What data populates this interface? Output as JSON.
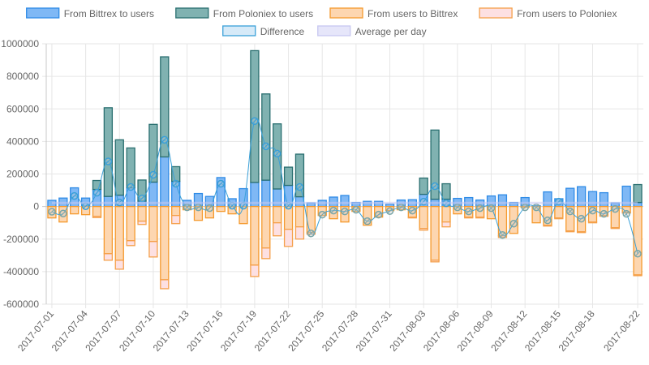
{
  "chart_data": {
    "type": "bar",
    "title": "",
    "xlabel": "",
    "ylabel": "",
    "ylim": [
      -600000,
      1000000
    ],
    "yticks": [
      1000000,
      800000,
      600000,
      400000,
      200000,
      0,
      -200000,
      -400000,
      -600000
    ],
    "grid": true,
    "legend_position": "top",
    "stacked": true,
    "categories": [
      "2017-07-01",
      "2017-07-02",
      "2017-07-03",
      "2017-07-04",
      "2017-07-05",
      "2017-07-06",
      "2017-07-07",
      "2017-07-08",
      "2017-07-09",
      "2017-07-10",
      "2017-07-11",
      "2017-07-12",
      "2017-07-13",
      "2017-07-14",
      "2017-07-15",
      "2017-07-16",
      "2017-07-17",
      "2017-07-18",
      "2017-07-19",
      "2017-07-20",
      "2017-07-21",
      "2017-07-22",
      "2017-07-23",
      "2017-07-24",
      "2017-07-25",
      "2017-07-26",
      "2017-07-27",
      "2017-07-28",
      "2017-07-29",
      "2017-07-30",
      "2017-07-31",
      "2017-08-01",
      "2017-08-02",
      "2017-08-03",
      "2017-08-04",
      "2017-08-05",
      "2017-08-06",
      "2017-08-07",
      "2017-08-08",
      "2017-08-09",
      "2017-08-10",
      "2017-08-11",
      "2017-08-12",
      "2017-08-13",
      "2017-08-14",
      "2017-08-15",
      "2017-08-16",
      "2017-08-17",
      "2017-08-18",
      "2017-08-19",
      "2017-08-20",
      "2017-08-21",
      "2017-08-22"
    ],
    "xtick_labels": [
      "2017-07-01",
      "2017-07-04",
      "2017-07-07",
      "2017-07-10",
      "2017-07-13",
      "2017-07-16",
      "2017-07-19",
      "2017-07-22",
      "2017-07-25",
      "2017-07-28",
      "2017-07-31",
      "2017-08-03",
      "2017-08-06",
      "2017-08-09",
      "2017-08-12",
      "2017-08-15",
      "2017-08-18",
      "2017-08-22"
    ],
    "series": [
      {
        "name": "From Bittrex to users",
        "kind": "bar",
        "stack": "out",
        "fill": "#7fb8f5",
        "stroke": "#2f8be6",
        "values": [
          38000,
          52000,
          115000,
          52000,
          105000,
          62000,
          70000,
          115000,
          33000,
          150000,
          305000,
          155000,
          38000,
          80000,
          62000,
          178000,
          48000,
          110000,
          148000,
          162000,
          108000,
          130000,
          60000,
          22000,
          38000,
          58000,
          68000,
          25000,
          32000,
          32000,
          15000,
          40000,
          42000,
          75000,
          45000,
          45000,
          50000,
          55000,
          40000,
          65000,
          72000,
          25000,
          55000,
          5000,
          90000,
          48000,
          112000,
          122000,
          92000,
          85000,
          22000,
          125000,
          25000
        ]
      },
      {
        "name": "From Poloniex to users",
        "kind": "bar",
        "stack": "out",
        "fill": "#80b2b1",
        "stroke": "#2a6f70",
        "values": [
          0,
          0,
          0,
          0,
          55000,
          545000,
          340000,
          245000,
          130000,
          355000,
          615000,
          90000,
          0,
          0,
          0,
          0,
          0,
          0,
          810000,
          530000,
          400000,
          112000,
          262000,
          0,
          0,
          0,
          0,
          0,
          0,
          0,
          0,
          0,
          0,
          100000,
          425000,
          95000,
          0,
          0,
          0,
          0,
          0,
          0,
          0,
          0,
          0,
          0,
          0,
          0,
          0,
          0,
          0,
          0,
          110000
        ]
      },
      {
        "name": "From users to Bittrex",
        "kind": "bar",
        "stack": "in",
        "fill": "#fdd6b0",
        "stroke": "#f59a2e",
        "values": [
          -70000,
          -95000,
          -45000,
          -50000,
          -60000,
          -290000,
          -330000,
          -210000,
          -90000,
          -215000,
          -450000,
          -55000,
          -20000,
          -85000,
          -70000,
          -30000,
          -45000,
          -105000,
          -360000,
          -255000,
          -100000,
          -140000,
          -125000,
          -160000,
          -55000,
          -75000,
          -95000,
          -30000,
          -115000,
          -65000,
          -25000,
          -20000,
          -65000,
          -135000,
          -330000,
          -95000,
          -45000,
          -65000,
          -65000,
          -75000,
          -180000,
          -165000,
          -5000,
          -100000,
          -115000,
          -70000,
          -150000,
          -155000,
          -95000,
          -55000,
          -130000,
          -35000,
          -420000
        ]
      },
      {
        "name": "From users to Poloniex",
        "kind": "bar",
        "stack": "in",
        "fill": "#fde0e2",
        "stroke": "#f5a04a",
        "values": [
          0,
          0,
          0,
          0,
          -8000,
          -40000,
          -55000,
          -30000,
          -20000,
          -95000,
          -55000,
          -50000,
          0,
          0,
          0,
          0,
          0,
          0,
          -70000,
          -65000,
          -80000,
          -105000,
          -75000,
          -10000,
          0,
          0,
          0,
          0,
          0,
          0,
          0,
          0,
          -5000,
          -10000,
          -10000,
          -30000,
          0,
          -5000,
          -5000,
          0,
          -10000,
          0,
          0,
          0,
          -5000,
          -5000,
          -5000,
          -5000,
          -5000,
          -5000,
          -5000,
          -5000,
          -5000
        ]
      },
      {
        "name": "Difference",
        "kind": "line",
        "fill": "#d6eaf8",
        "stroke": "#3aa0d8",
        "point_stroke": "#7aa6a8",
        "values": [
          -32000,
          -43000,
          65000,
          2000,
          85000,
          277000,
          25000,
          120000,
          50000,
          195000,
          410000,
          140000,
          -5000,
          -5000,
          -10000,
          140000,
          5000,
          5000,
          525000,
          370000,
          325000,
          5000,
          120000,
          -165000,
          -50000,
          -25000,
          -30000,
          -20000,
          -90000,
          -50000,
          -28000,
          -5000,
          -25000,
          30000,
          125000,
          20000,
          -5000,
          -30000,
          -10000,
          -10000,
          -175000,
          -105000,
          -5000,
          -5000,
          -85000,
          30000,
          -30000,
          -75000,
          -25000,
          -45000,
          -15000,
          -45000,
          -290000
        ]
      },
      {
        "name": "Average per day",
        "kind": "line",
        "fill": "#e6e6fa",
        "stroke": "#c8c8f0",
        "values": [
          22000,
          22000,
          22000,
          22000,
          22000,
          22000,
          22000,
          22000,
          22000,
          22000,
          22000,
          22000,
          22000,
          22000,
          22000,
          22000,
          22000,
          22000,
          22000,
          22000,
          22000,
          22000,
          22000,
          22000,
          22000,
          22000,
          22000,
          22000,
          22000,
          22000,
          22000,
          22000,
          22000,
          22000,
          22000,
          22000,
          22000,
          22000,
          22000,
          22000,
          22000,
          22000,
          22000,
          22000,
          22000,
          22000,
          22000,
          22000,
          22000,
          22000,
          22000,
          22000,
          22000
        ]
      }
    ]
  }
}
